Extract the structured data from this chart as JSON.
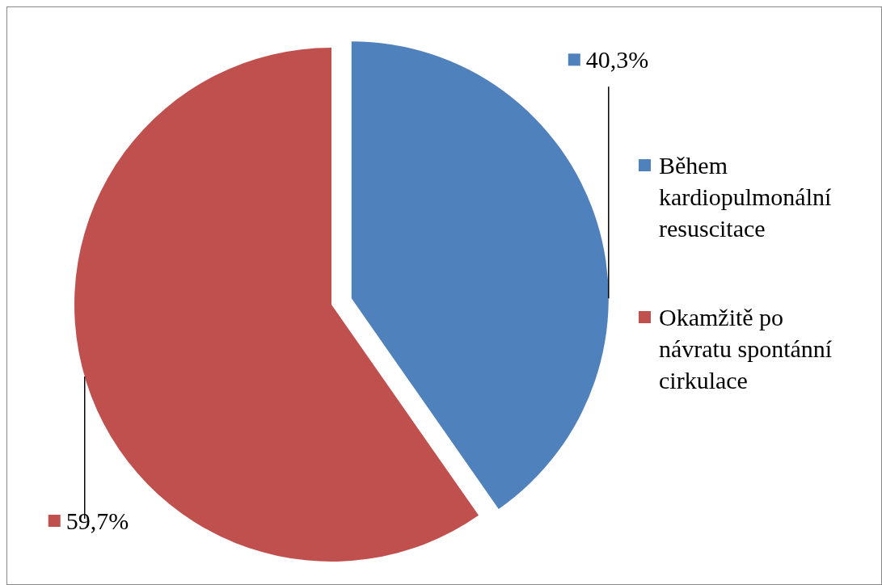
{
  "chart_data": {
    "type": "pie",
    "categories": [
      "Během kardiopulmonální resuscitace",
      "Okamžitě po návratu spontánní cirkulace"
    ],
    "values": [
      40.3,
      59.7
    ],
    "colors": [
      "#4f81bd",
      "#c0504d"
    ],
    "value_labels": [
      "40,3%",
      "59,7%"
    ],
    "legend": "right"
  }
}
